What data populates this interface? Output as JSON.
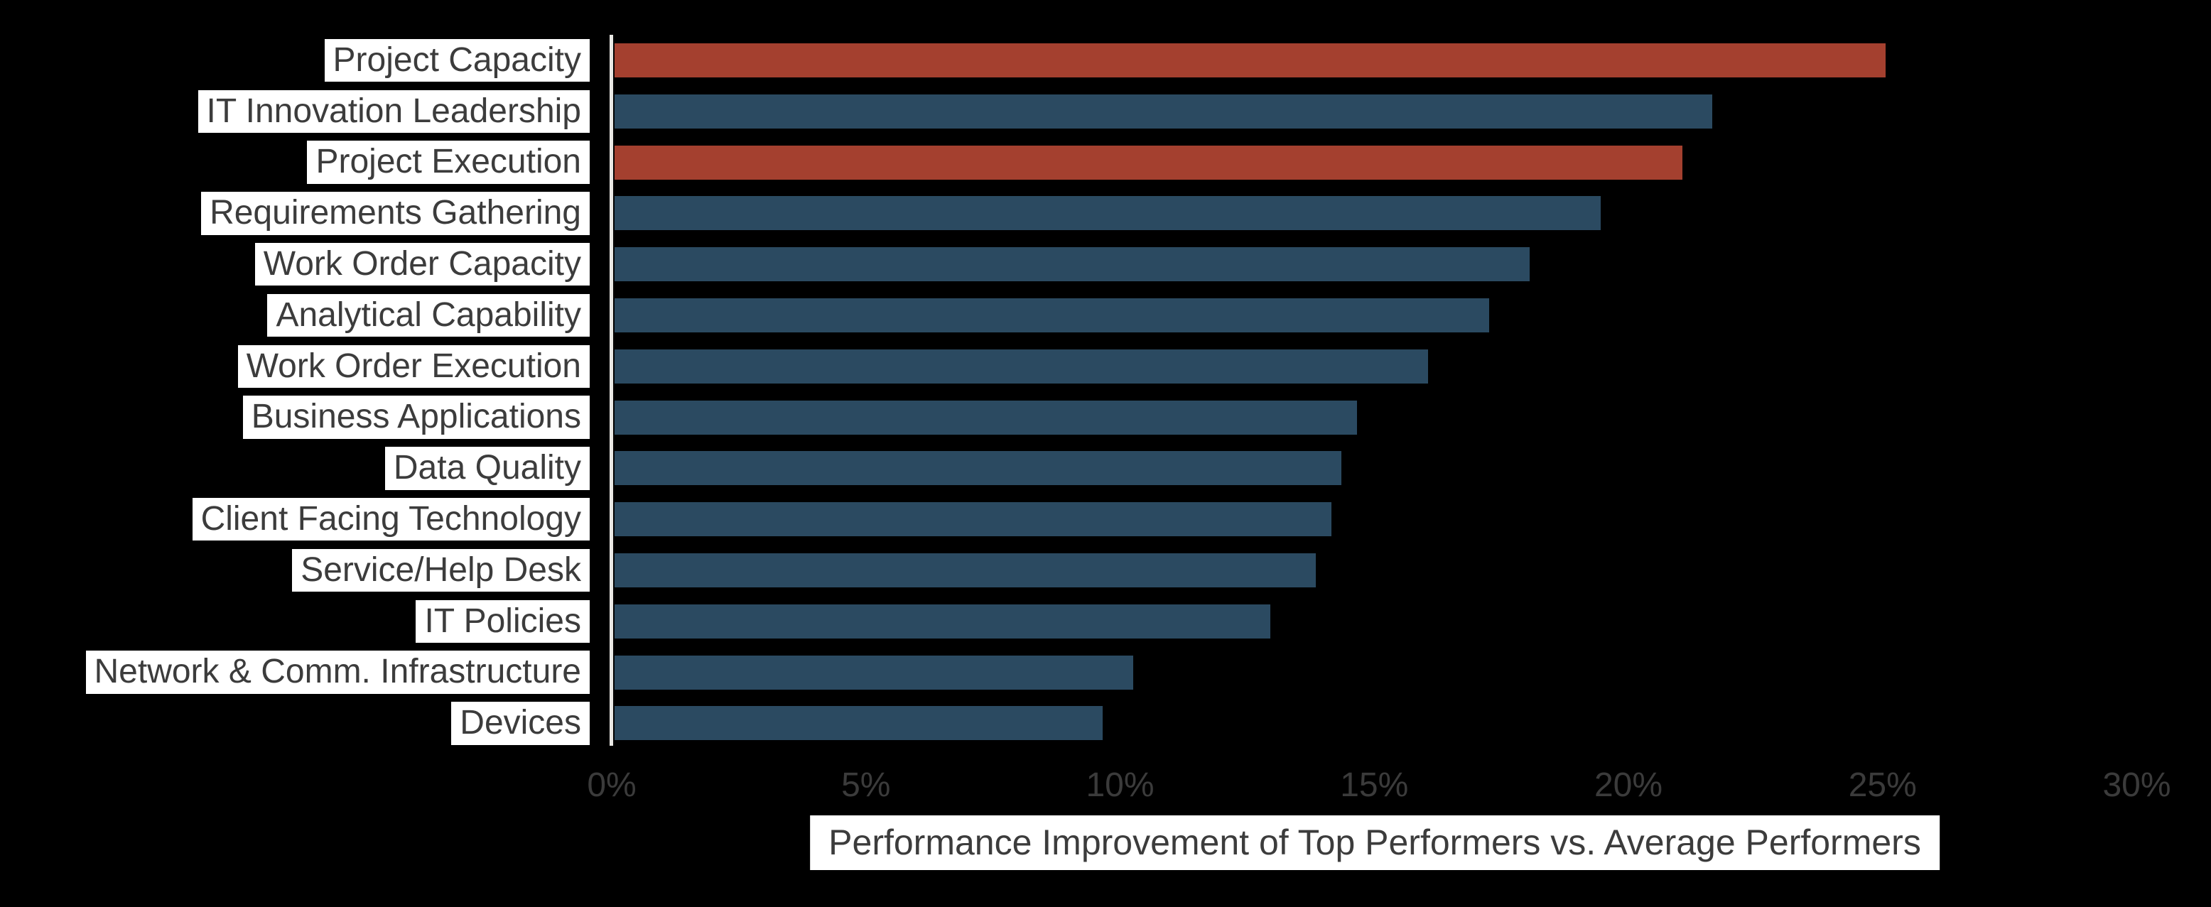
{
  "chart_data": {
    "type": "bar",
    "orientation": "horizontal",
    "title": "",
    "xlabel": "Performance Improvement of Top Performers vs. Average Performers",
    "ylabel": "",
    "xlim": [
      0,
      30
    ],
    "grid": false,
    "legend": false,
    "x_ticks": [
      "0%",
      "5%",
      "10%",
      "15%",
      "20%",
      "25%",
      "30%"
    ],
    "x_tick_values": [
      0,
      5,
      10,
      15,
      20,
      25,
      30
    ],
    "categories": [
      "Project Capacity",
      "IT Innovation Leadership",
      "Project Execution",
      "Requirements Gathering",
      "Work Order Capacity",
      "Analytical Capability",
      "Work Order Execution",
      "Business Applications",
      "Data Quality",
      "Client Facing Technology",
      "Service/Help Desk",
      "IT Policies",
      "Network & Comm. Infrastructure",
      "Devices"
    ],
    "values": [
      25.0,
      21.6,
      21.0,
      19.4,
      18.0,
      17.2,
      16.0,
      14.6,
      14.3,
      14.1,
      13.8,
      12.9,
      10.2,
      9.6
    ],
    "highlighted_categories": [
      "Project Capacity",
      "Project Execution"
    ],
    "highlight_indices": [
      0,
      2
    ]
  },
  "colors": {
    "background": "#000000",
    "bar_default": "#2B4A61",
    "bar_highlight": "#A4402F",
    "axis_line": "#E9E8E4",
    "chip_bg": "#FFFFFF",
    "label_text": "#3C3C3C",
    "tick_text": "#3B3B3B"
  }
}
